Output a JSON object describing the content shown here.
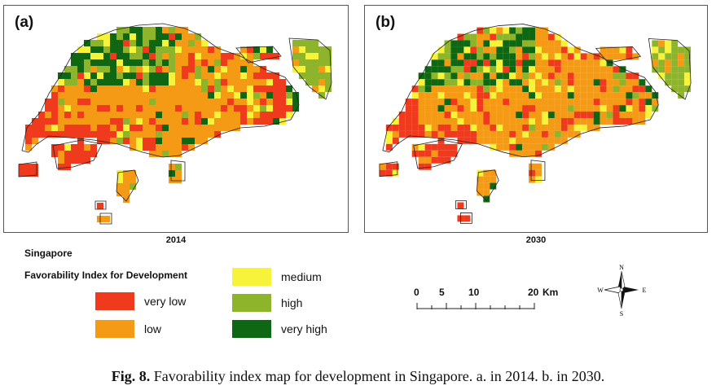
{
  "panels": [
    {
      "label": "(a)",
      "year": "2014",
      "seed": 7,
      "eastBias": 0.0
    },
    {
      "label": "(b)",
      "year": "2030",
      "seed": 19,
      "eastBias": 0.22
    }
  ],
  "legend": {
    "country": "Singapore",
    "title": "Favorability Index for Development",
    "classes": [
      {
        "name": "very low",
        "color": "#f03a1e"
      },
      {
        "name": "low",
        "color": "#f59a14"
      },
      {
        "name": "medium",
        "color": "#f7f33a"
      },
      {
        "name": "high",
        "color": "#8db42a"
      },
      {
        "name": "very high",
        "color": "#0f6613"
      }
    ]
  },
  "scale_bar": {
    "ticks": [
      "0",
      "5",
      "10",
      "20"
    ],
    "unit": "Km"
  },
  "compass": {
    "n": "N",
    "s": "S",
    "e": "E",
    "w": "W"
  },
  "caption": {
    "prefix": "Fig. 8.",
    "text": " Favorability index map for development in Singapore. a. in 2014. b. in 2030."
  }
}
